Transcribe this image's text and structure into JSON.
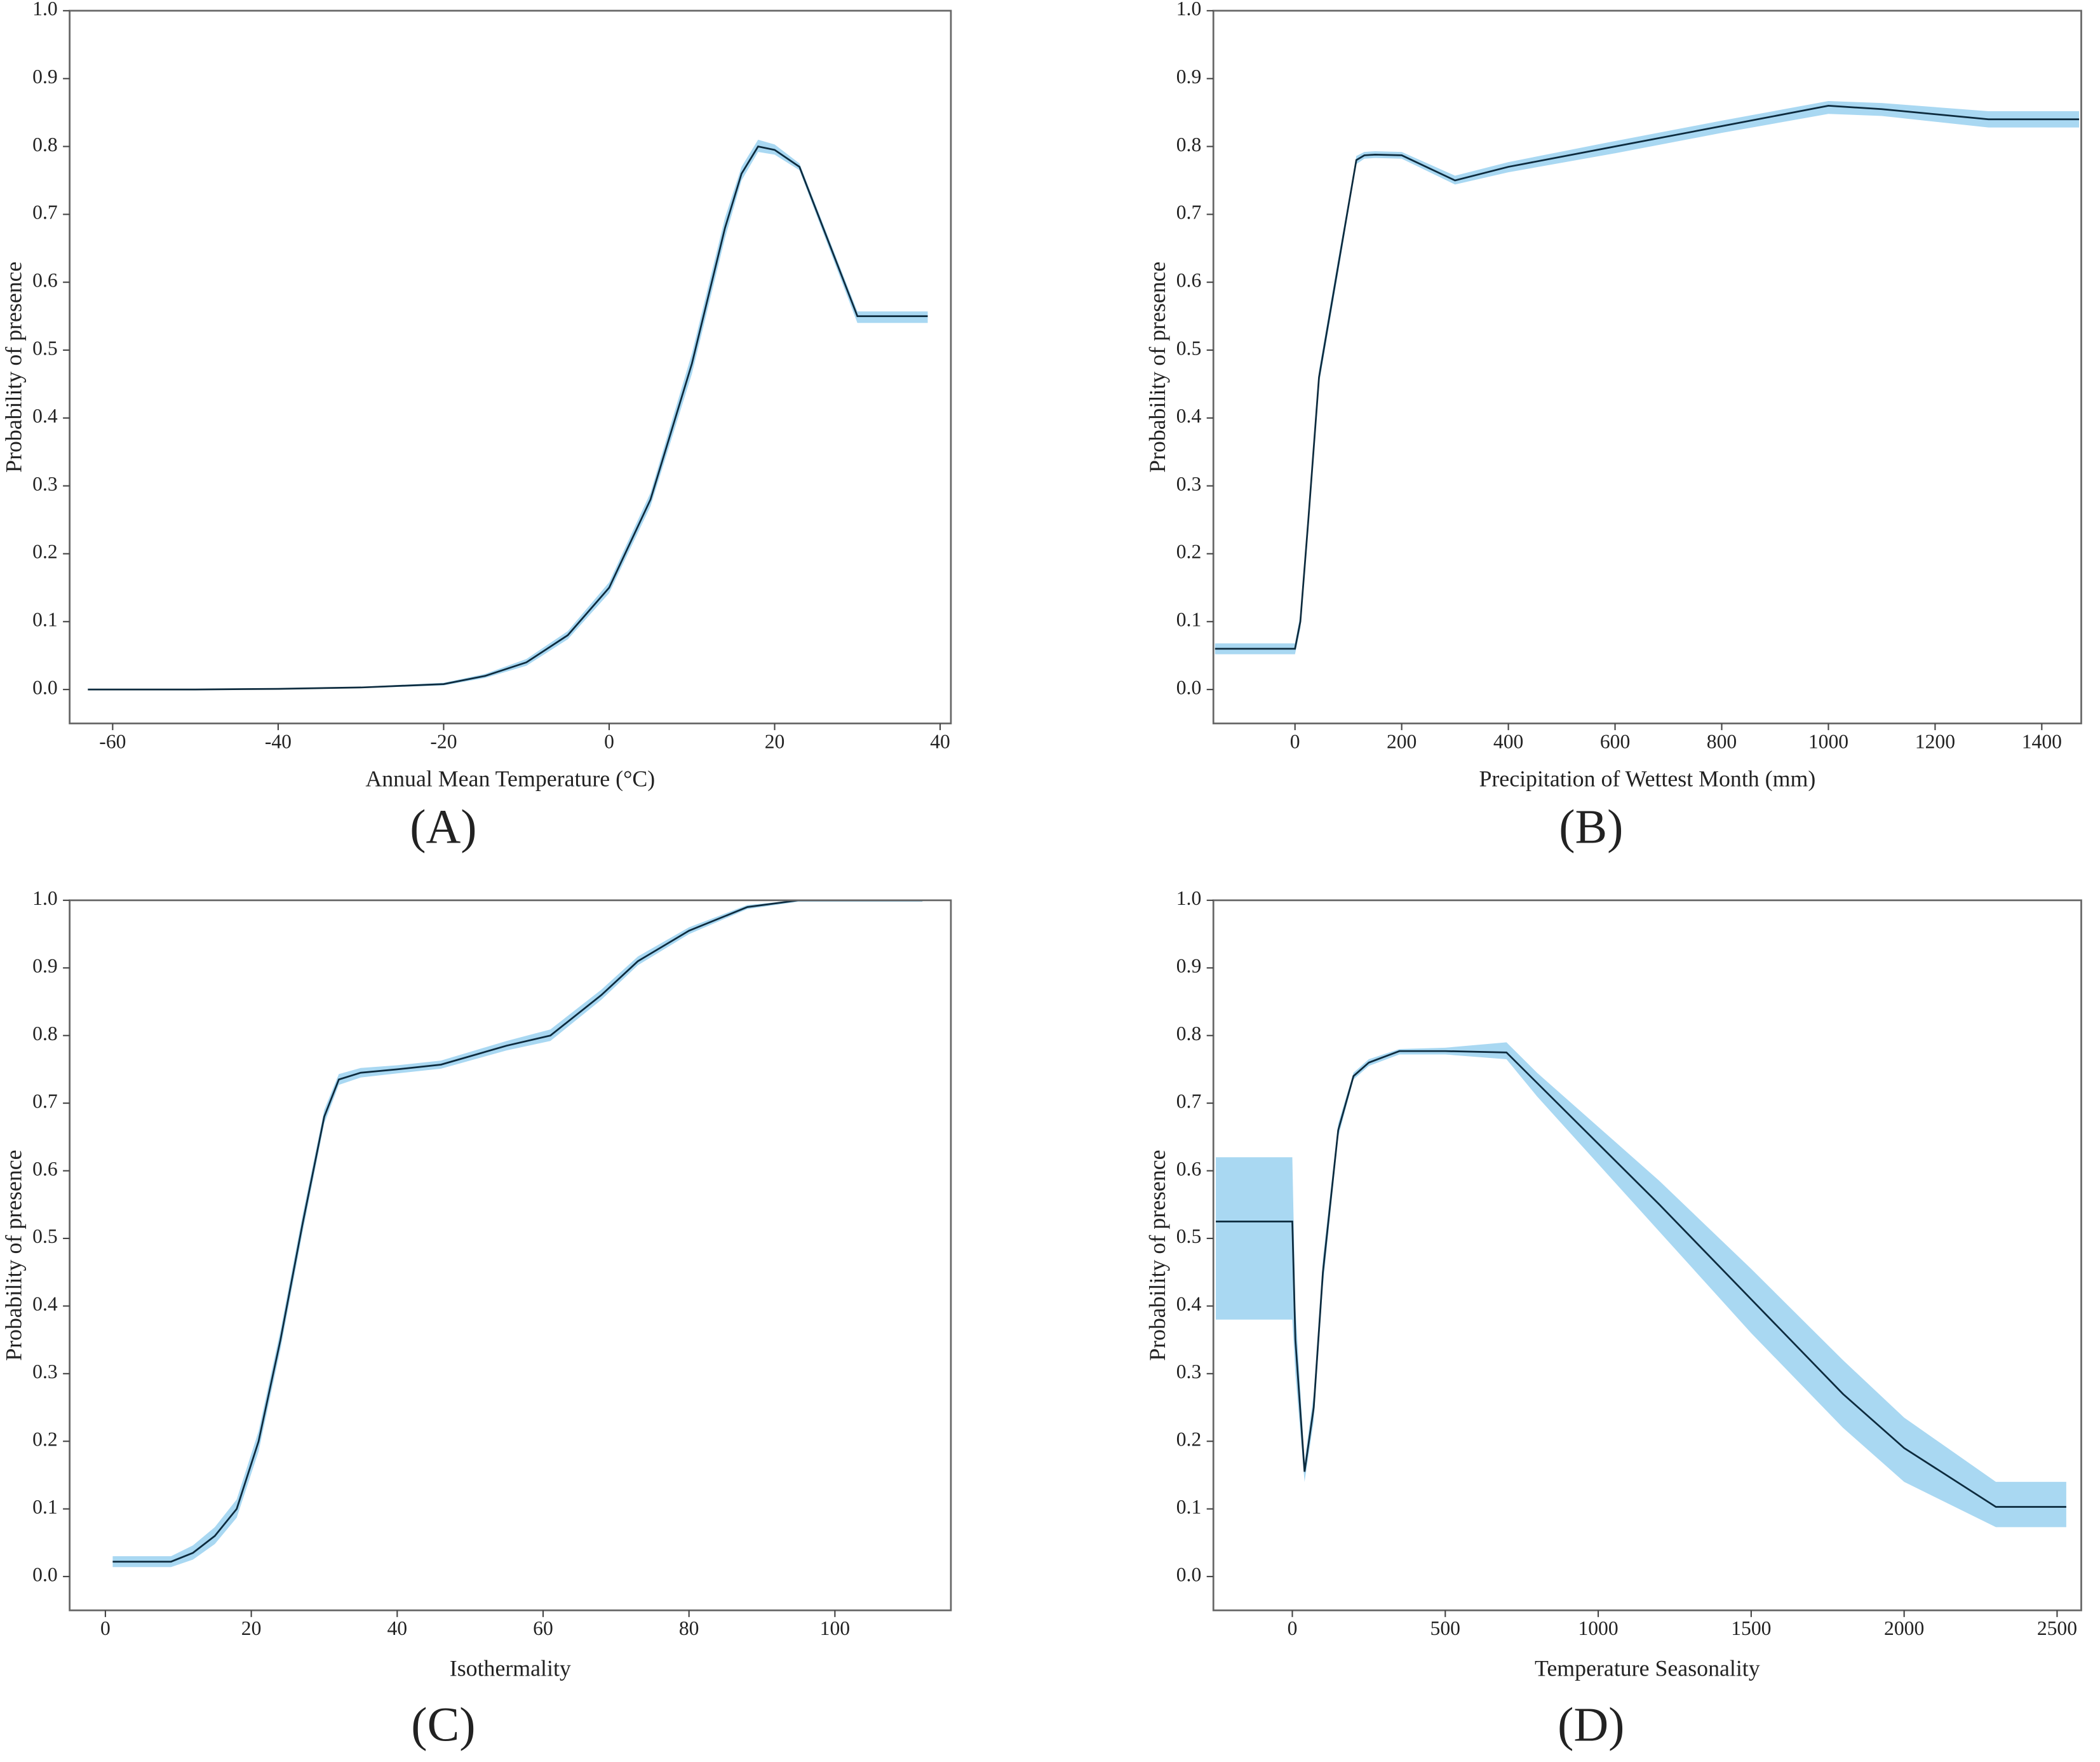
{
  "chart_data": [
    {
      "type": "line",
      "panel_label": "(A)",
      "xlabel": "Annual Mean Temperature (°C)",
      "ylabel": "Probability of presence",
      "x": [
        -63,
        -50,
        -40,
        -30,
        -20,
        -15,
        -10,
        -5,
        0,
        5,
        10,
        14,
        16,
        18,
        20,
        23,
        30,
        38.5
      ],
      "values": [
        0,
        0,
        0.001,
        0.003,
        0.008,
        0.02,
        0.04,
        0.08,
        0.15,
        0.28,
        0.48,
        0.68,
        0.76,
        0.8,
        0.795,
        0.77,
        0.55,
        0.55
      ],
      "lower": [
        0,
        0,
        0.001,
        0.002,
        0.006,
        0.017,
        0.035,
        0.074,
        0.142,
        0.27,
        0.465,
        0.665,
        0.75,
        0.792,
        0.788,
        0.765,
        0.54,
        0.54
      ],
      "upper": [
        0,
        0,
        0.002,
        0.004,
        0.01,
        0.023,
        0.045,
        0.086,
        0.158,
        0.29,
        0.495,
        0.695,
        0.77,
        0.81,
        0.803,
        0.775,
        0.557,
        0.557
      ],
      "color": "#0d2b3e",
      "band_color": "#a9d8f2",
      "xlim": [
        -65.2,
        41.3
      ],
      "ylim": [
        -0.05,
        1.0
      ],
      "xticks": [
        -60,
        -40,
        -20,
        0,
        20,
        40
      ],
      "yticks": [
        {
          "value": 0,
          "label": "0.0"
        },
        0.1,
        0.2,
        0.3,
        0.4,
        0.5,
        0.6,
        0.7,
        0.8,
        0.9,
        {
          "value": 1,
          "label": "1.0"
        }
      ]
    },
    {
      "type": "line",
      "panel_label": "(B)",
      "xlabel": "Precipitation of Wettest Month (mm)",
      "ylabel": "Probability of presence",
      "x": [
        -150,
        0,
        10,
        25,
        45,
        80,
        115,
        130,
        150,
        200,
        300,
        400,
        600,
        800,
        1000,
        1100,
        1300,
        1470
      ],
      "values": [
        0.06,
        0.06,
        0.1,
        0.25,
        0.46,
        0.62,
        0.78,
        0.787,
        0.788,
        0.787,
        0.75,
        0.77,
        0.8,
        0.83,
        0.86,
        0.855,
        0.84,
        0.84
      ],
      "lower": [
        0.052,
        0.052,
        0.09,
        0.24,
        0.45,
        0.61,
        0.774,
        0.782,
        0.783,
        0.782,
        0.744,
        0.762,
        0.79,
        0.82,
        0.848,
        0.845,
        0.828,
        0.828
      ],
      "upper": [
        0.068,
        0.068,
        0.11,
        0.26,
        0.47,
        0.63,
        0.786,
        0.792,
        0.793,
        0.792,
        0.757,
        0.777,
        0.808,
        0.838,
        0.867,
        0.864,
        0.852,
        0.852
      ],
      "color": "#0d2b3e",
      "band_color": "#a9d8f2",
      "xlim": [
        -153,
        1474
      ],
      "ylim": [
        -0.05,
        1.0
      ],
      "xticks": [
        0,
        200,
        400,
        600,
        800,
        1000,
        1200,
        1400
      ],
      "yticks": [
        {
          "value": 0,
          "label": "0.0"
        },
        0.1,
        0.2,
        0.3,
        0.4,
        0.5,
        0.6,
        0.7,
        0.8,
        0.9,
        {
          "value": 1,
          "label": "1.0"
        }
      ]
    },
    {
      "type": "line",
      "panel_label": "(C)",
      "xlabel": "Isothermality",
      "ylabel": "Probability of presence",
      "x": [
        1,
        9,
        12,
        15,
        18,
        21,
        24,
        27,
        30,
        32,
        35,
        40,
        46,
        55,
        61,
        68,
        73,
        80,
        88,
        95,
        112
      ],
      "values": [
        0.022,
        0.022,
        0.035,
        0.06,
        0.1,
        0.2,
        0.35,
        0.52,
        0.68,
        0.735,
        0.745,
        0.75,
        0.757,
        0.785,
        0.8,
        0.86,
        0.91,
        0.955,
        0.99,
        1.0,
        1.0
      ],
      "lower": [
        0.014,
        0.014,
        0.025,
        0.048,
        0.087,
        0.185,
        0.336,
        0.507,
        0.67,
        0.727,
        0.738,
        0.744,
        0.751,
        0.778,
        0.792,
        0.853,
        0.904,
        0.95,
        0.987,
        0.998,
        0.998
      ],
      "upper": [
        0.03,
        0.03,
        0.046,
        0.073,
        0.114,
        0.215,
        0.364,
        0.533,
        0.69,
        0.743,
        0.752,
        0.756,
        0.763,
        0.792,
        0.809,
        0.868,
        0.917,
        0.96,
        0.993,
        1.0,
        1.0
      ],
      "color": "#0d2b3e",
      "band_color": "#a9d8f2",
      "xlim": [
        -4.9,
        115.9
      ],
      "ylim": [
        -0.05,
        1.0
      ],
      "xticks": [
        0,
        20,
        40,
        60,
        80,
        100
      ],
      "yticks": [
        {
          "value": 0,
          "label": "0.0"
        },
        0.1,
        0.2,
        0.3,
        0.4,
        0.5,
        0.6,
        0.7,
        0.8,
        0.9,
        {
          "value": 1,
          "label": "1.0"
        }
      ]
    },
    {
      "type": "line",
      "panel_label": "(D)",
      "xlabel": "Temperature Seasonality",
      "ylabel": "Probability of presence",
      "x": [
        -250,
        0,
        10,
        40,
        70,
        100,
        150,
        200,
        250,
        350,
        500,
        700,
        800,
        1000,
        1200,
        1500,
        1800,
        2000,
        2300,
        2530
      ],
      "values": [
        0.525,
        0.525,
        0.35,
        0.155,
        0.25,
        0.45,
        0.66,
        0.74,
        0.76,
        0.777,
        0.777,
        0.775,
        0.73,
        0.64,
        0.55,
        0.41,
        0.27,
        0.19,
        0.103,
        0.103
      ],
      "lower": [
        0.38,
        0.38,
        0.3,
        0.14,
        0.23,
        0.43,
        0.65,
        0.735,
        0.755,
        0.772,
        0.772,
        0.765,
        0.71,
        0.61,
        0.51,
        0.36,
        0.22,
        0.14,
        0.073,
        0.073
      ],
      "upper": [
        0.62,
        0.62,
        0.4,
        0.17,
        0.27,
        0.47,
        0.67,
        0.745,
        0.765,
        0.78,
        0.782,
        0.79,
        0.745,
        0.665,
        0.585,
        0.455,
        0.32,
        0.235,
        0.14,
        0.14
      ],
      "color": "#0d2b3e",
      "band_color": "#a9d8f2",
      "xlim": [
        -258,
        2579
      ],
      "ylim": [
        -0.05,
        1.0
      ],
      "xticks": [
        0,
        500,
        1000,
        1500,
        2000,
        2500
      ],
      "yticks": [
        {
          "value": 0,
          "label": "0.0"
        },
        0.1,
        0.2,
        0.3,
        0.4,
        0.5,
        0.6,
        0.7,
        0.8,
        0.9,
        {
          "value": 1,
          "label": "1.0"
        }
      ]
    }
  ]
}
